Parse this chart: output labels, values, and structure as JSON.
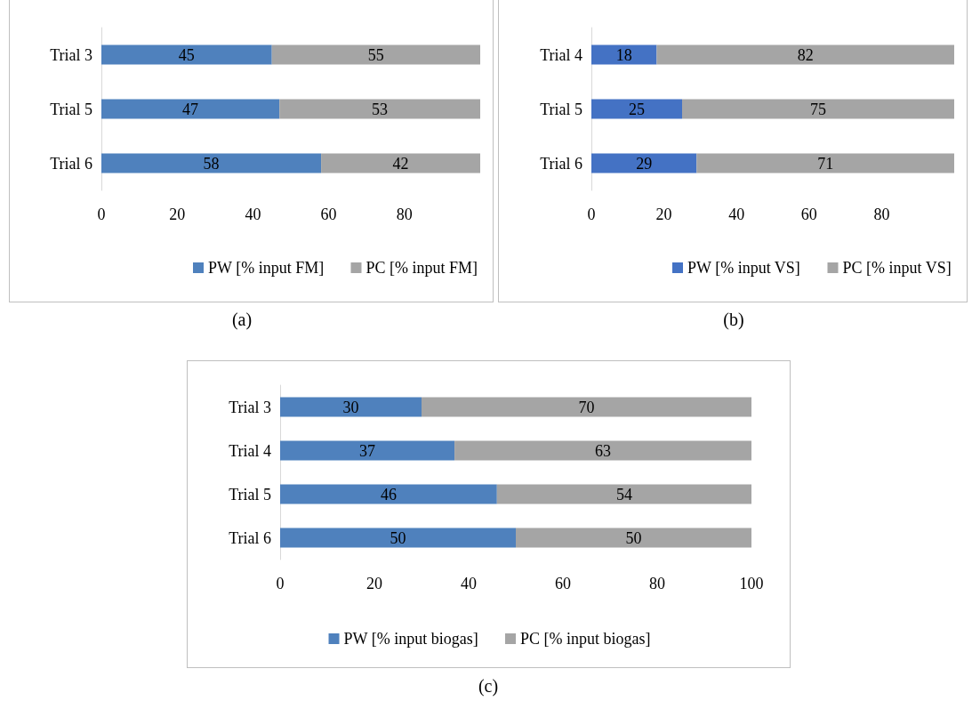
{
  "chart_data": [
    {
      "type": "bar",
      "orientation": "horizontal",
      "stacked": true,
      "categories": [
        "Trial 3",
        "Trial 5",
        "Trial 6"
      ],
      "series": [
        {
          "name": "PW [% input FM]",
          "color": "#4f81bd",
          "values": [
            45,
            47,
            58
          ]
        },
        {
          "name": "PC [% input FM]",
          "color": "#a5a5a5",
          "values": [
            55,
            53,
            42
          ]
        }
      ],
      "xlim": [
        0,
        100
      ],
      "xticks": [
        0,
        20,
        40,
        60,
        80
      ],
      "data_labels": true,
      "legend": "bottom",
      "grid": false,
      "annotations": [
        "(a)"
      ]
    },
    {
      "type": "bar",
      "orientation": "horizontal",
      "stacked": true,
      "categories": [
        "Trial 4",
        "Trial 5",
        "Trial 6"
      ],
      "series": [
        {
          "name": "PW [% input VS]",
          "color": "#4472c4",
          "values": [
            18,
            25,
            29
          ]
        },
        {
          "name": "PC [% input VS]",
          "color": "#a5a5a5",
          "values": [
            82,
            75,
            71
          ]
        }
      ],
      "xlim": [
        0,
        100
      ],
      "xticks": [
        0,
        20,
        40,
        60,
        80
      ],
      "data_labels": true,
      "legend": "bottom",
      "grid": false,
      "annotations": [
        "(b)"
      ]
    },
    {
      "type": "bar",
      "orientation": "horizontal",
      "stacked": true,
      "categories": [
        "Trial 3",
        "Trial 4",
        "Trial 5",
        "Trial 6"
      ],
      "series": [
        {
          "name": "PW [% input biogas]",
          "color": "#4f81bd",
          "values": [
            30,
            37,
            46,
            50
          ]
        },
        {
          "name": "PC [% input biogas]",
          "color": "#a5a5a5",
          "values": [
            70,
            63,
            54,
            50
          ]
        }
      ],
      "xlim": [
        0,
        100
      ],
      "xticks": [
        0,
        20,
        40,
        60,
        80,
        100
      ],
      "data_labels": true,
      "legend": "bottom",
      "grid": false,
      "annotations": [
        "(c)"
      ]
    }
  ]
}
